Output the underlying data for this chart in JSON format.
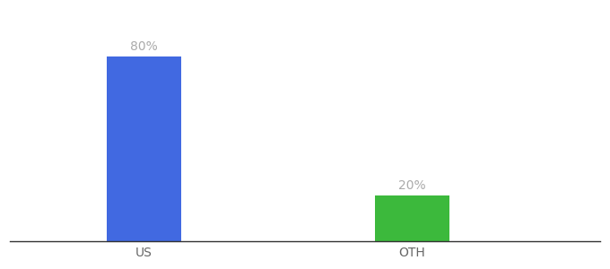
{
  "categories": [
    "US",
    "OTH"
  ],
  "values": [
    80,
    20
  ],
  "bar_colors": [
    "#4169e1",
    "#3cb93c"
  ],
  "label_texts": [
    "80%",
    "20%"
  ],
  "background_color": "#ffffff",
  "ylim": [
    0,
    100
  ],
  "bar_width": 0.28,
  "x_positions": [
    1,
    2
  ],
  "xlim": [
    0.5,
    2.7
  ],
  "label_fontsize": 10,
  "tick_fontsize": 10,
  "label_color": "#aaaaaa",
  "tick_color": "#666666",
  "spine_color": "#333333"
}
